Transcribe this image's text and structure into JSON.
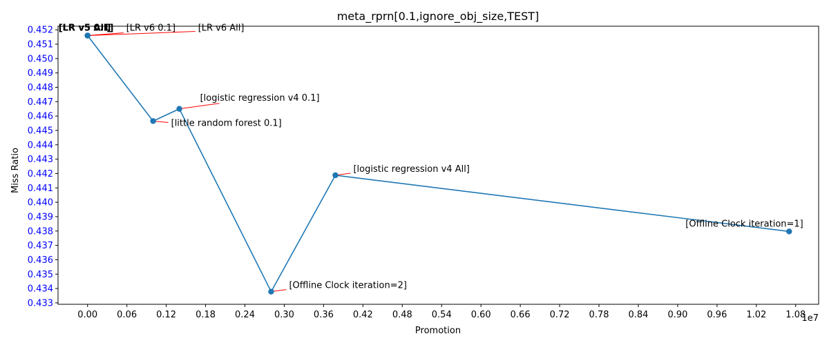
{
  "chart_data": {
    "type": "line",
    "title": "meta_rprn[0.1,ignore_obj_size,TEST]",
    "xlabel": "Promotion",
    "ylabel": "Miss Ratio",
    "x_scale_label": "1e7",
    "xlim": [
      -0.045,
      1.115
    ],
    "ylim": [
      0.4329,
      0.45225
    ],
    "x_ticks": [
      0.0,
      0.06,
      0.12,
      0.18,
      0.24,
      0.3,
      0.36,
      0.42,
      0.48,
      0.54,
      0.6,
      0.66,
      0.72,
      0.78,
      0.84,
      0.9,
      0.96,
      1.02,
      1.08
    ],
    "x_tick_labels": [
      "0.00",
      "0.06",
      "0.12",
      "0.18",
      "0.24",
      "0.30",
      "0.36",
      "0.42",
      "0.48",
      "0.54",
      "0.60",
      "0.66",
      "0.72",
      "0.78",
      "0.84",
      "0.90",
      "0.96",
      "1.02",
      "1.08"
    ],
    "y_ticks": [
      0.433,
      0.434,
      0.435,
      0.436,
      0.437,
      0.438,
      0.439,
      0.44,
      0.441,
      0.442,
      0.443,
      0.444,
      0.445,
      0.446,
      0.447,
      0.448,
      0.449,
      0.45,
      0.451,
      0.452
    ],
    "y_tick_labels": [
      "0.433",
      "0.434",
      "0.435",
      "0.436",
      "0.437",
      "0.438",
      "0.439",
      "0.440",
      "0.441",
      "0.442",
      "0.443",
      "0.444",
      "0.445",
      "0.446",
      "0.447",
      "0.448",
      "0.449",
      "0.450",
      "0.451",
      "0.452"
    ],
    "line_color": "#1f77b4",
    "annotation_line_color": "#ff0000",
    "y_tick_label_color": "#0000ff",
    "grid": false,
    "points": [
      {
        "x": 0.0,
        "y": 0.4516,
        "label": "[LR v5 0.1]",
        "bold": true
      },
      {
        "x": 0.0,
        "y": 0.4516,
        "label": "[LR v5 All]",
        "bold": true
      },
      {
        "x": 0.0,
        "y": 0.4516,
        "label": "[LR v6 0.1]",
        "bold": false
      },
      {
        "x": 0.0,
        "y": 0.4516,
        "label": "[LR v6 All]",
        "bold": false
      },
      {
        "x": 0.1,
        "y": 0.44565,
        "label": "[little random forest 0.1]",
        "bold": false
      },
      {
        "x": 0.14,
        "y": 0.4465,
        "label": "[logistic regression v4 0.1]",
        "bold": false
      },
      {
        "x": 0.28,
        "y": 0.43378,
        "label": "[Offline Clock iteration=2]",
        "bold": false
      },
      {
        "x": 0.378,
        "y": 0.44188,
        "label": "[logistic regression v4 All]",
        "bold": false
      },
      {
        "x": 1.07,
        "y": 0.43797,
        "label": "[Offline Clock iteration=1]",
        "bold": false
      }
    ]
  }
}
